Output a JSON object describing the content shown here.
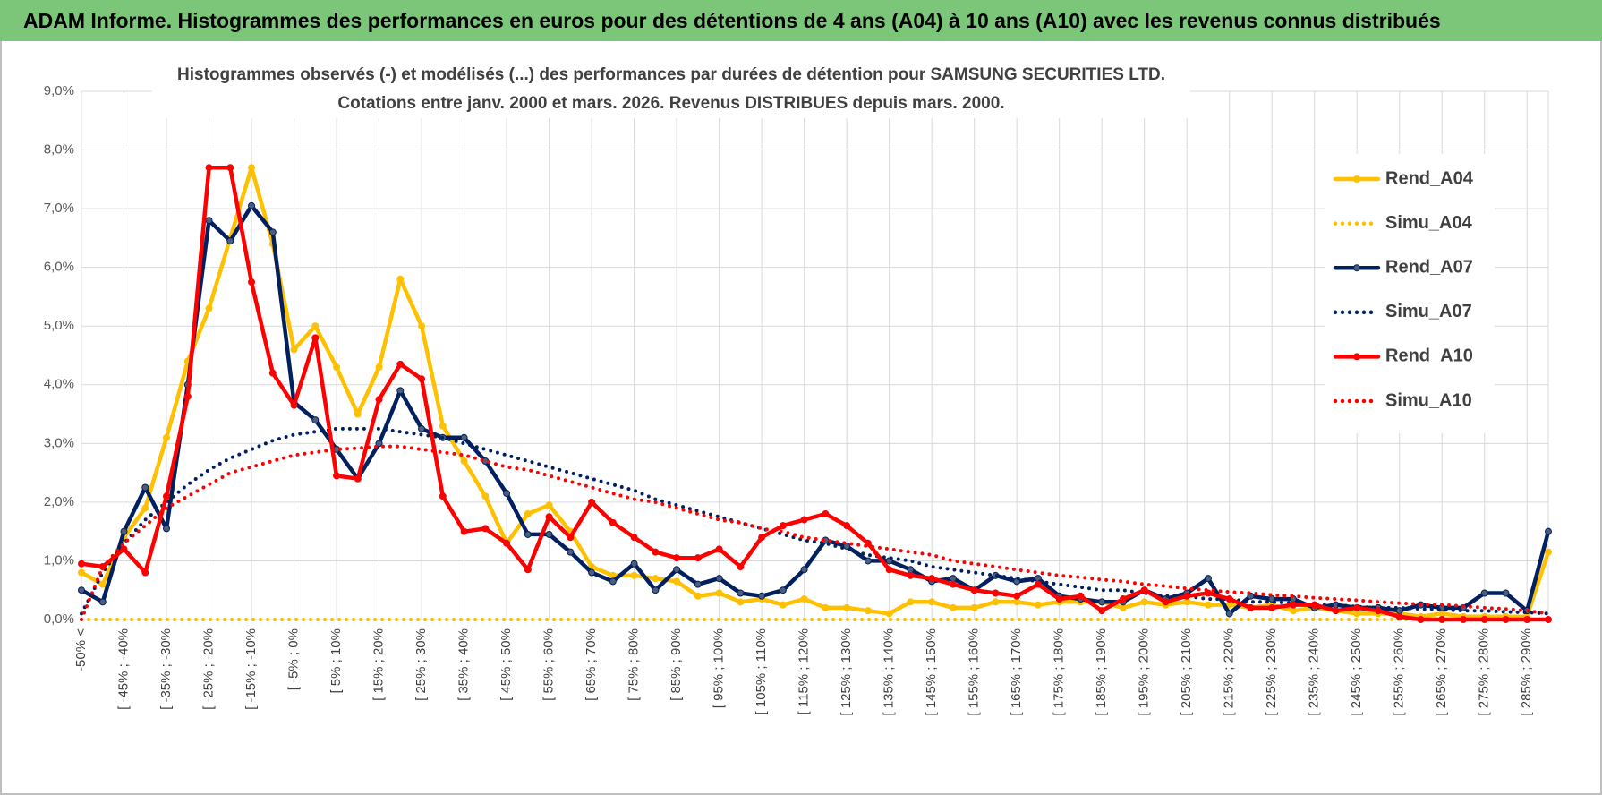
{
  "header": "ADAM Informe. Histogrammes des performances en euros pour des détentions de 4 ans (A04) à 10 ans (A10) avec les revenus connus distribués",
  "chart_data": {
    "type": "line",
    "title": "Histogrammes observés (-) et modélisés (...) des performances par durées de détention pour SAMSUNG SECURITIES LTD.",
    "subtitle": "Cotations entre janv. 2000 et mars. 2026. Revenus DISTRIBUES depuis mars. 2000.",
    "categories": [
      "-50% <",
      null,
      "[ -45% ; -40%",
      null,
      "[ -35% ; -30%",
      null,
      "[ -25% ; -20%",
      null,
      "[ -15% ; -10%",
      null,
      "[ -5% ; 0%",
      null,
      "[ 5% ; 10%",
      null,
      "[ 15% ; 20%",
      null,
      "[ 25% ; 30%",
      null,
      "[ 35% ; 40%",
      null,
      "[ 45% ; 50%",
      null,
      "[ 55% ; 60%",
      null,
      "[ 65% ; 70%",
      null,
      "[ 75% ; 80%",
      null,
      "[ 85% ; 90%",
      null,
      "[ 95% ; 100%",
      null,
      "[ 105% ; 110%",
      null,
      "[ 115% ; 120%",
      null,
      "[ 125% ; 130%",
      null,
      "[ 135% ; 140%",
      null,
      "[ 145% ; 150%",
      null,
      "[ 155% ; 160%",
      null,
      "[ 165% ; 170%",
      null,
      "[ 175% ; 180%",
      null,
      "[ 185% ; 190%",
      null,
      "[ 195% ; 200%",
      null,
      "[ 205% ; 210%",
      null,
      "[ 215% ; 220%",
      null,
      "[ 225% ; 230%",
      null,
      "[ 235% ; 240%",
      null,
      "[ 245% ; 250%",
      null,
      "[ 255% ; 260%",
      null,
      "[ 265% ; 270%",
      null,
      "[ 275% ; 280%",
      null,
      "[ 285% ; 290%",
      null
    ],
    "ylim": [
      0,
      9
    ],
    "yticks": [
      {
        "value": 0,
        "label": "0,0%"
      },
      {
        "value": 1,
        "label": "1,0%"
      },
      {
        "value": 2,
        "label": "2,0%"
      },
      {
        "value": 3,
        "label": "3,0%"
      },
      {
        "value": 4,
        "label": "4,0%"
      },
      {
        "value": 5,
        "label": "5,0%"
      },
      {
        "value": 6,
        "label": "6,0%"
      },
      {
        "value": 7,
        "label": "7,0%"
      },
      {
        "value": 8,
        "label": "8,0%"
      },
      {
        "value": 9,
        "label": "9,0%"
      }
    ],
    "grid": true,
    "legend": "right",
    "series": [
      {
        "name": "Rend_A04",
        "color": "#ffc000",
        "style": "solid",
        "markers": true,
        "values": [
          0.8,
          0.6,
          1.4,
          1.9,
          3.1,
          4.4,
          5.3,
          6.5,
          7.7,
          6.4,
          4.6,
          5.0,
          4.3,
          3.5,
          4.3,
          5.8,
          5.0,
          3.3,
          2.7,
          2.1,
          1.3,
          1.8,
          1.95,
          1.5,
          0.9,
          0.75,
          0.75,
          0.7,
          0.65,
          0.4,
          0.45,
          0.3,
          0.35,
          0.25,
          0.35,
          0.2,
          0.2,
          0.15,
          0.1,
          0.3,
          0.3,
          0.2,
          0.2,
          0.3,
          0.3,
          0.25,
          0.3,
          0.3,
          0.3,
          0.2,
          0.3,
          0.25,
          0.3,
          0.25,
          0.25,
          0.2,
          0.25,
          0.15,
          0.2,
          0.15,
          0.1,
          0.1,
          0.1,
          0.05,
          0.1,
          0.05,
          0.05,
          0.05,
          0.05,
          1.15
        ]
      },
      {
        "name": "Simu_A04",
        "color": "#ffc000",
        "style": "dotted",
        "markers": false,
        "values": [
          0,
          0,
          0,
          0,
          0,
          0,
          0,
          0,
          0,
          0,
          0,
          0,
          0,
          0,
          0,
          0,
          0,
          0,
          0,
          0,
          0,
          0,
          0,
          0,
          0,
          0,
          0,
          0,
          0,
          0,
          0,
          0,
          0,
          0,
          0,
          0,
          0,
          0,
          0,
          0,
          0,
          0,
          0,
          0,
          0,
          0,
          0,
          0,
          0,
          0,
          0,
          0,
          0,
          0,
          0,
          0,
          0,
          0,
          0,
          0,
          0,
          0,
          0,
          0,
          0,
          0,
          0,
          0,
          0,
          0
        ]
      },
      {
        "name": "Rend_A07",
        "color": "#002060",
        "style": "solid",
        "markers": true,
        "values": [
          0.5,
          0.3,
          1.5,
          2.25,
          1.55,
          4.0,
          6.8,
          6.45,
          7.05,
          6.6,
          3.7,
          3.4,
          2.9,
          2.4,
          3.0,
          3.9,
          3.25,
          3.1,
          3.1,
          2.7,
          2.15,
          1.45,
          1.45,
          1.15,
          0.8,
          0.65,
          0.95,
          0.5,
          0.85,
          0.6,
          0.7,
          0.45,
          0.4,
          0.5,
          0.85,
          1.35,
          1.25,
          1.0,
          1.0,
          0.85,
          0.65,
          0.7,
          0.5,
          0.75,
          0.65,
          0.7,
          0.4,
          0.35,
          0.3,
          0.3,
          0.5,
          0.35,
          0.45,
          0.7,
          0.1,
          0.4,
          0.35,
          0.35,
          0.2,
          0.25,
          0.2,
          0.2,
          0.15,
          0.25,
          0.2,
          0.2,
          0.45,
          0.45,
          0.15,
          1.5
        ]
      },
      {
        "name": "Simu_A07",
        "color": "#002060",
        "style": "dotted",
        "markers": false,
        "values": [
          0.1,
          0.8,
          1.3,
          1.7,
          2.0,
          2.3,
          2.55,
          2.75,
          2.9,
          3.05,
          3.15,
          3.2,
          3.25,
          3.25,
          3.25,
          3.2,
          3.15,
          3.1,
          3.0,
          2.9,
          2.8,
          2.7,
          2.6,
          2.5,
          2.4,
          2.3,
          2.2,
          2.05,
          1.95,
          1.85,
          1.75,
          1.65,
          1.55,
          1.45,
          1.35,
          1.3,
          1.2,
          1.1,
          1.05,
          1.0,
          0.9,
          0.85,
          0.8,
          0.75,
          0.7,
          0.65,
          0.6,
          0.55,
          0.5,
          0.5,
          0.45,
          0.4,
          0.4,
          0.35,
          0.35,
          0.3,
          0.3,
          0.28,
          0.25,
          0.25,
          0.22,
          0.2,
          0.2,
          0.18,
          0.17,
          0.15,
          0.15,
          0.13,
          0.12,
          0.1
        ]
      },
      {
        "name": "Rend_A10",
        "color": "#ff0000",
        "style": "solid",
        "markers": true,
        "values": [
          0.95,
          0.9,
          1.2,
          0.8,
          2.1,
          3.8,
          7.7,
          7.7,
          5.75,
          4.2,
          3.65,
          4.8,
          2.45,
          2.4,
          3.75,
          4.35,
          4.1,
          2.1,
          1.5,
          1.55,
          1.3,
          0.85,
          1.75,
          1.4,
          2.0,
          1.65,
          1.4,
          1.15,
          1.05,
          1.05,
          1.2,
          0.9,
          1.4,
          1.6,
          1.7,
          1.8,
          1.6,
          1.3,
          0.85,
          0.75,
          0.7,
          0.6,
          0.5,
          0.45,
          0.4,
          0.6,
          0.35,
          0.4,
          0.15,
          0.35,
          0.5,
          0.3,
          0.4,
          0.45,
          0.35,
          0.2,
          0.2,
          0.25,
          0.25,
          0.15,
          0.2,
          0.15,
          0.05,
          0,
          0,
          0,
          0,
          0,
          0,
          0
        ]
      },
      {
        "name": "Simu_A10",
        "color": "#ff0000",
        "style": "dotted",
        "markers": false,
        "values": [
          0,
          0.9,
          1.3,
          1.6,
          1.9,
          2.1,
          2.3,
          2.5,
          2.6,
          2.7,
          2.8,
          2.85,
          2.9,
          2.92,
          2.95,
          2.95,
          2.9,
          2.85,
          2.8,
          2.7,
          2.6,
          2.55,
          2.45,
          2.35,
          2.25,
          2.15,
          2.05,
          2.0,
          1.9,
          1.8,
          1.7,
          1.65,
          1.55,
          1.5,
          1.4,
          1.35,
          1.3,
          1.25,
          1.2,
          1.15,
          1.1,
          1.0,
          0.95,
          0.9,
          0.85,
          0.8,
          0.75,
          0.72,
          0.68,
          0.65,
          0.6,
          0.57,
          0.53,
          0.5,
          0.47,
          0.45,
          0.42,
          0.4,
          0.37,
          0.35,
          0.33,
          0.3,
          0.28,
          0.26,
          0.25,
          0.23,
          0.2,
          0.18,
          0.15,
          0.1
        ]
      }
    ]
  }
}
